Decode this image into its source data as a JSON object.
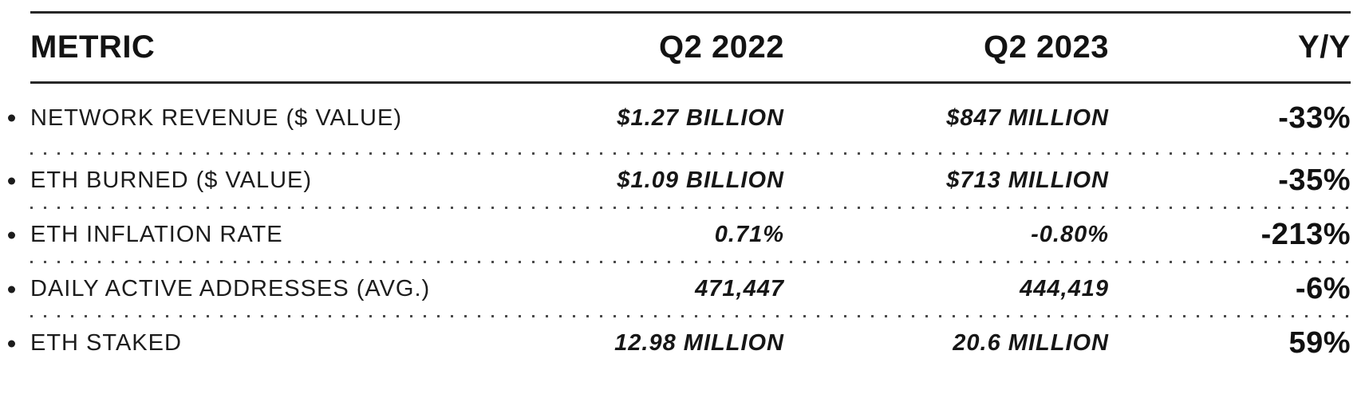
{
  "chart_data": {
    "type": "table",
    "columns": [
      "METRIC",
      "Q2 2022",
      "Q2 2023",
      "Y/Y"
    ],
    "rows": [
      {
        "metric": "NETWORK REVENUE ($ VALUE)",
        "q2_2022": "$1.27 BILLION",
        "q2_2023": "$847 MILLION",
        "yoy": "-33%"
      },
      {
        "metric": "ETH BURNED ($ VALUE)",
        "q2_2022": "$1.09 BILLION",
        "q2_2023": "$713 MILLION",
        "yoy": "-35%"
      },
      {
        "metric": "ETH INFLATION RATE",
        "q2_2022": "0.71%",
        "q2_2023": "-0.80%",
        "yoy": "-213%"
      },
      {
        "metric": "DAILY ACTIVE ADDRESSES (AVG.)",
        "q2_2022": "471,447",
        "q2_2023": "444,419",
        "yoy": "-6%"
      },
      {
        "metric": "ETH STAKED",
        "q2_2022": "12.98 MILLION",
        "q2_2023": "20.6 MILLION",
        "yoy": "59%"
      }
    ],
    "layout": {
      "grid": "off",
      "legend": "none",
      "value_columns_alignment": "right"
    }
  },
  "colors": {
    "background": "#ffffff",
    "text": "#161616",
    "rule_line": "#272727",
    "dotted_separator": "#4b4b4b"
  }
}
